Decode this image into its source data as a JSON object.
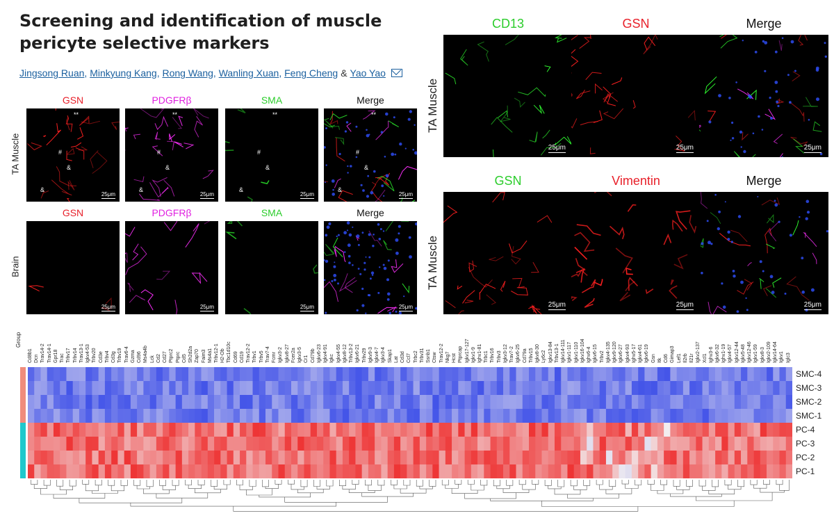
{
  "article": {
    "title": "Screening and identification of muscle pericyte selective markers",
    "authors": [
      "Jingsong Ruan",
      "Minkyung Kang",
      "Rong Wang",
      "Wanling Xuan",
      "Feng Cheng",
      "Yao Yao"
    ],
    "author_separator": ",",
    "author_conjunction": "&"
  },
  "figure_left": {
    "columns": [
      "GSN",
      "PDGFRβ",
      "SMA",
      "Merge"
    ],
    "column_colors": [
      "#e8202a",
      "#e020e0",
      "#2ccd2c",
      "#111111"
    ],
    "rows": [
      "TA Muscle",
      "Brain"
    ],
    "scale_bar": "25μm",
    "markers": [
      "**",
      "#",
      "^",
      "&"
    ]
  },
  "figure_right_top": {
    "columns": [
      "CD13",
      "GSN",
      "Merge"
    ],
    "column_colors": [
      "#2ccd2c",
      "#e8202a",
      "#111111"
    ],
    "row": "TA Muscle",
    "scale_bar": "25μm"
  },
  "figure_right_bottom": {
    "columns": [
      "GSN",
      "Vimentin",
      "Merge"
    ],
    "column_colors": [
      "#2ccd2c",
      "#e8202a",
      "#111111"
    ],
    "row": "TA Muscle",
    "scale_bar": "25μm"
  },
  "heatmap": {
    "group_label": "Group",
    "genes": [
      "Cd8b1",
      "Dcn",
      "Trav14-2",
      "Trav14-1",
      "Gpr18",
      "Trac",
      "Trbv17",
      "Trbv14",
      "Trav13-1",
      "Igkv4-53",
      "Trbv20",
      "Cd3e",
      "Trbv4",
      "Cd3g",
      "Trbv19",
      "Trav6-4",
      "Gzma",
      "Cd96",
      "Ms4a4b",
      "Lck",
      "Cd2",
      "Cd27",
      "Ptprc2",
      "Ptprc",
      "Cd5",
      "Sh2d2a",
      "Zap70",
      "Faim3",
      "Ms4a1",
      "Trbv12-1",
      "H2-Ob",
      "Tbc1d10c",
      "Cd69",
      "Cd19",
      "Trav12-2",
      "Trbv1",
      "Trbv5",
      "Trav7-4",
      "Fcmr",
      "Igkv3-2",
      "Igkv8-27",
      "Fcer2a",
      "Igkv3-5",
      "Cr1",
      "Cd79b",
      "Igkv6-23",
      "Igkv4-91",
      "Igkc",
      "Igkv4-55",
      "Igkv8-12",
      "Trbv13-2",
      "Igkv6-21",
      "Trbv29",
      "Igkv9-3",
      "Igkv4-7",
      "Igkv3-4",
      "Skap1",
      "Lat",
      "Cd3d",
      "Ccl7",
      "Trbc2",
      "Trbv31",
      "Ssnb1",
      "Ctsw",
      "Trav12-2",
      "Nkg7",
      "Hcst",
      "Ptprcap",
      "Igkv17-127",
      "Igkv1-9",
      "Ighv1-81",
      "Trbc1",
      "Trbv16",
      "Trbv3",
      "Igkv3-12",
      "Trav7-2",
      "Igkv6-25",
      "Cd79a",
      "Trbv15",
      "Igkv8-30",
      "Ly6c2",
      "Igkv13-84",
      "Trbv13-1",
      "Igkv14-111",
      "Igkv1-117",
      "Igkv1-110",
      "Igkv16-104",
      "Ighv6-4",
      "Igkv6-15",
      "Trbv2",
      "Igkv4-135",
      "Igkv9-120",
      "Igkv6-27",
      "Igkv4-93",
      "Ighv5-17",
      "Igkv4-61",
      "Igkv6-19",
      "Gsn",
      "Itk",
      "Cd6",
      "Gimap3",
      "Lef1",
      "Il2rb",
      "Il21r",
      "Igkv2-137",
      "Xcl1",
      "Ighv3-6",
      "Igkv6-32",
      "Ighv1-19",
      "Igkv4-57",
      "Igkv12-44",
      "Igkv5-48",
      "Igkv12-46",
      "Igkv1-59",
      "Igkv8-3",
      "Igkv2-109",
      "Igkv14-64",
      "Igkv1",
      "Iglc3"
    ],
    "rows": [
      "SMC-4",
      "SMC-3",
      "SMC-2",
      "SMC-1",
      "PC-4",
      "PC-3",
      "PC-2",
      "PC-1"
    ],
    "group_colors": {
      "SMC": "#f08c7c",
      "PC": "#20c8cc"
    },
    "low_color": "#3a4ce8",
    "mid_color": "#f2eef0",
    "high_color": "#ee2a2a"
  }
}
